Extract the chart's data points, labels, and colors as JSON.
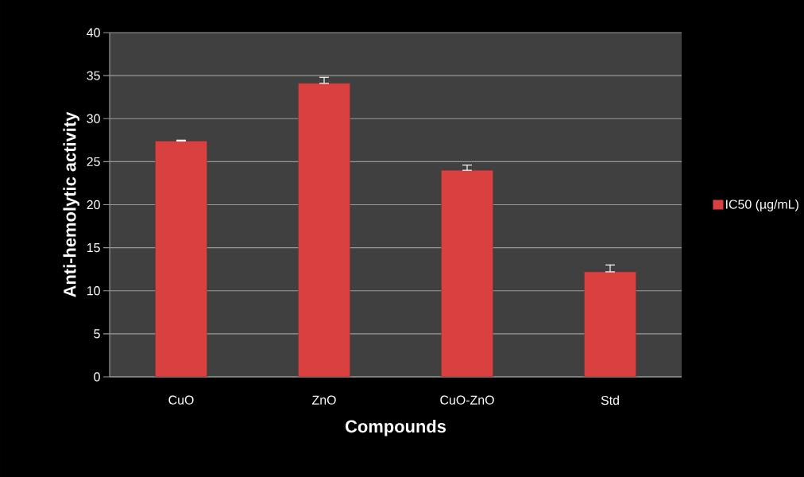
{
  "chart_data": {
    "type": "bar",
    "xlabel": "Compounds",
    "ylabel": "Anti-hemolytic activity",
    "categories": [
      "CuO",
      "ZnO",
      "CuO-ZnO",
      "Std"
    ],
    "series": [
      {
        "name": "IC50 (µg/mL)",
        "color": "#d94040",
        "values": [
          27.4,
          34.1,
          24.0,
          12.2
        ],
        "errors": [
          [
            27.4,
            27.5
          ],
          [
            34.1,
            34.8
          ],
          [
            24.0,
            24.6
          ],
          [
            12.2,
            13.0
          ]
        ]
      }
    ],
    "ylim": [
      0,
      40
    ],
    "yticks": [
      0,
      5,
      10,
      15,
      20,
      25,
      30,
      35,
      40
    ],
    "grid": "y",
    "legend": "right"
  }
}
